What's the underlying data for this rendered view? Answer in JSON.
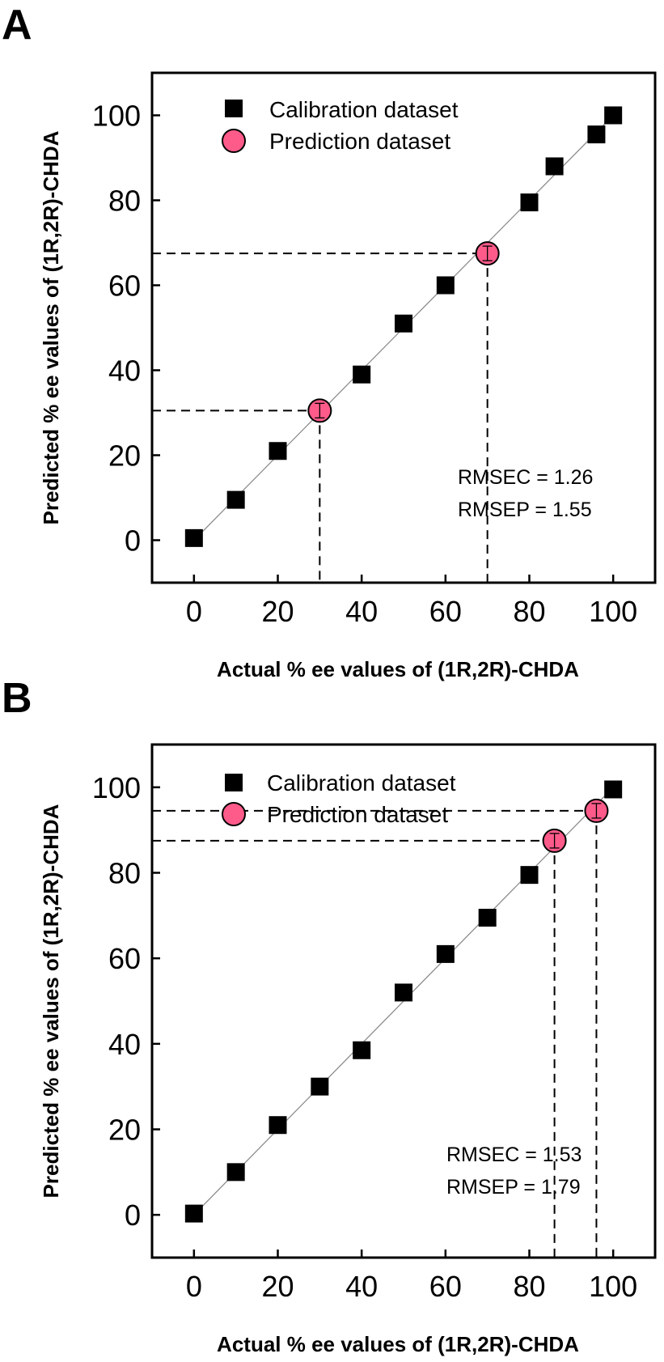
{
  "colors": {
    "calibration": "#000000",
    "prediction": "#ff5b8a",
    "fit_line": "#8c8c8c",
    "frame": "#000000"
  },
  "chart_data": [
    {
      "panel": "A",
      "type": "scatter",
      "xlabel": "Actual % ee values of (1R,2R)-CHDA",
      "ylabel": "Predicted % ee values of (1R,2R)-CHDA",
      "xlim": [
        -10,
        110
      ],
      "ylim": [
        -10,
        110
      ],
      "xticks": [
        "0",
        "20",
        "40",
        "60",
        "80",
        "100"
      ],
      "yticks": [
        "0",
        "20",
        "40",
        "60",
        "80",
        "100"
      ],
      "grid": false,
      "legend_placement": "top-left",
      "series": [
        {
          "name": "Calibration dataset",
          "marker": "square",
          "x": [
            0,
            10,
            20,
            40,
            50,
            60,
            80,
            86,
            96,
            100
          ],
          "y": [
            0.5,
            9.5,
            21,
            39,
            51,
            60,
            79.5,
            88,
            95.5,
            100
          ]
        },
        {
          "name": "Prediction dataset",
          "marker": "circle",
          "x": [
            30,
            70
          ],
          "y": [
            30.5,
            67.5
          ]
        }
      ],
      "annotations": [
        "RMSEC = 1.26",
        "RMSEP = 1.55"
      ]
    },
    {
      "panel": "B",
      "type": "scatter",
      "xlabel": "Actual % ee values of (1R,2R)-CHDA",
      "ylabel": "Predicted % ee values of (1R,2R)-CHDA",
      "xlim": [
        -10,
        110
      ],
      "ylim": [
        -10,
        110
      ],
      "xticks": [
        "0",
        "20",
        "40",
        "60",
        "80",
        "100"
      ],
      "yticks": [
        "0",
        "20",
        "40",
        "60",
        "80",
        "100"
      ],
      "grid": false,
      "legend_placement": "top-left",
      "series": [
        {
          "name": "Calibration dataset",
          "marker": "square",
          "x": [
            0,
            10,
            20,
            30,
            40,
            50,
            60,
            70,
            80,
            100
          ],
          "y": [
            0.3,
            10,
            21,
            30,
            38.5,
            52,
            61,
            69.5,
            79.5,
            99.5
          ]
        },
        {
          "name": "Prediction dataset",
          "marker": "circle",
          "x": [
            86,
            96
          ],
          "y": [
            87.5,
            94.5
          ]
        }
      ],
      "annotations": [
        "RMSEC = 1.53",
        "RMSEP = 1.79"
      ]
    }
  ]
}
